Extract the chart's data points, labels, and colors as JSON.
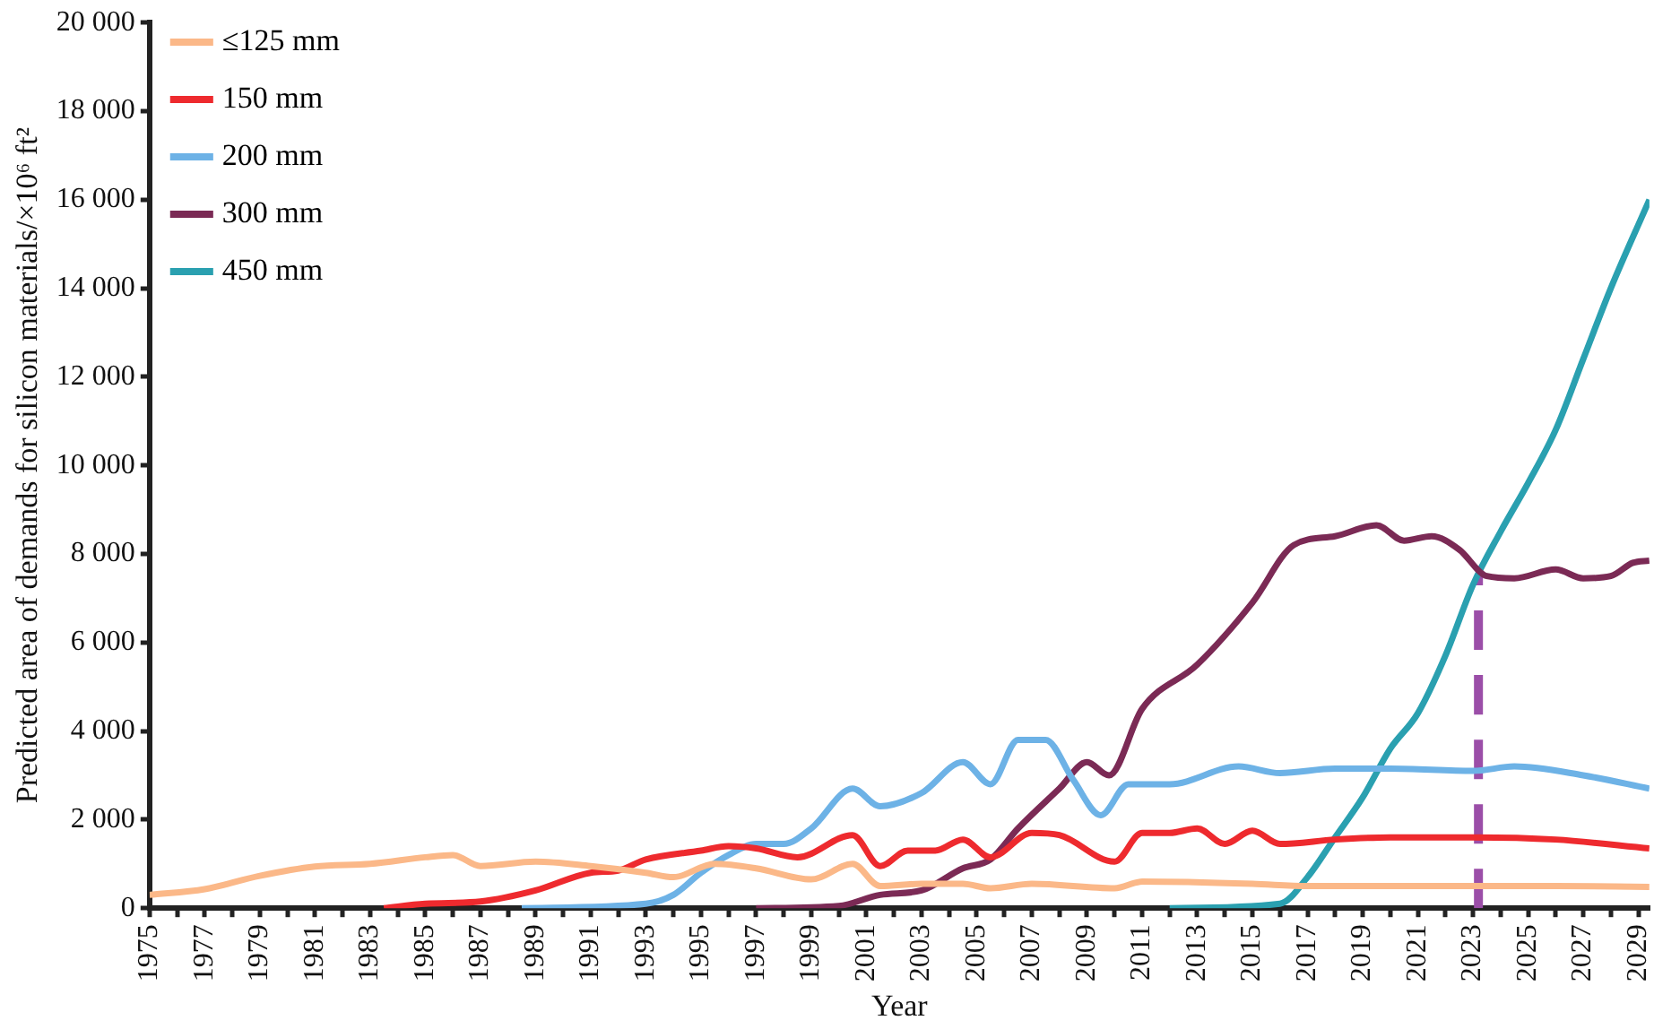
{
  "chart_data": {
    "type": "line",
    "xlabel": "Year",
    "ylabel": "Predicted area of demands for silicon materials/×10⁶ ft²",
    "xlim": [
      1975,
      2029.4
    ],
    "xticks": [
      1975,
      {
        "value": 1976,
        "label": null
      },
      1977,
      {
        "value": 1978,
        "label": null
      },
      1979,
      {
        "value": 1980,
        "label": null
      },
      1981,
      {
        "value": 1982,
        "label": null
      },
      1983,
      {
        "value": 1984,
        "label": null
      },
      1985,
      {
        "value": 1986,
        "label": null
      },
      1987,
      {
        "value": 1988,
        "label": null
      },
      1989,
      {
        "value": 1990,
        "label": null
      },
      1991,
      {
        "value": 1992,
        "label": null
      },
      1993,
      {
        "value": 1994,
        "label": null
      },
      1995,
      {
        "value": 1996,
        "label": null
      },
      1997,
      {
        "value": 1998,
        "label": null
      },
      1999,
      {
        "value": 2000,
        "label": null
      },
      2001,
      {
        "value": 2002,
        "label": null
      },
      2003,
      {
        "value": 2004,
        "label": null
      },
      2005,
      {
        "value": 2006,
        "label": null
      },
      2007,
      {
        "value": 2008,
        "label": null
      },
      2009,
      {
        "value": 2010,
        "label": null
      },
      2011,
      {
        "value": 2012,
        "label": null
      },
      2013,
      {
        "value": 2014,
        "label": null
      },
      2015,
      {
        "value": 2016,
        "label": null
      },
      2017,
      {
        "value": 2018,
        "label": null
      },
      2019,
      {
        "value": 2020,
        "label": null
      },
      2021,
      {
        "value": 2022,
        "label": null
      },
      2023,
      {
        "value": 2024,
        "label": null
      },
      2025,
      {
        "value": 2026,
        "label": null
      },
      2027,
      {
        "value": 2028,
        "label": null
      },
      2029
    ],
    "ylim": [
      0,
      20000
    ],
    "yticks": [
      0,
      {
        "value": 2000,
        "label": "2 000"
      },
      {
        "value": 4000,
        "label": "4 000"
      },
      {
        "value": 6000,
        "label": "6 000"
      },
      {
        "value": 8000,
        "label": "8 000"
      },
      {
        "value": 10000,
        "label": "10 000"
      },
      {
        "value": 12000,
        "label": "12 000"
      },
      {
        "value": 14000,
        "label": "14 000"
      },
      {
        "value": 16000,
        "label": "16 000"
      },
      {
        "value": 18000,
        "label": "18 000"
      },
      {
        "value": 20000,
        "label": "20 000"
      }
    ],
    "grid": false,
    "legend": "top left",
    "marker": "none",
    "line_style": "solid",
    "series": [
      {
        "name": "≤125 mm",
        "color": "#fbb888",
        "x": [
          1975,
          1977,
          1979,
          1981,
          1983,
          1985,
          1986,
          1987,
          1989,
          1991,
          1993,
          1994,
          1995.5,
          1997,
          1999,
          2000.5,
          2001.5,
          2003,
          2004.5,
          2005.5,
          2007,
          2010,
          2011,
          2015,
          2017,
          2020,
          2023,
          2026,
          2029.4
        ],
        "values": [
          300,
          430,
          730,
          940,
          1000,
          1150,
          1200,
          950,
          1050,
          950,
          800,
          700,
          1000,
          900,
          650,
          1000,
          500,
          550,
          550,
          450,
          550,
          450,
          600,
          550,
          500,
          500,
          500,
          500,
          480
        ]
      },
      {
        "name": "150 mm",
        "color": "#ee2a2e",
        "x": [
          1983.5,
          1985,
          1987,
          1989,
          1991,
          1992,
          1993,
          1995,
          1996,
          1997,
          1998.5,
          2000.5,
          2001.5,
          2002.5,
          2003.5,
          2004.5,
          2005.5,
          2007,
          2008,
          2010,
          2011,
          2012,
          2013,
          2014,
          2015,
          2016,
          2018,
          2020,
          2023,
          2026,
          2029.4
        ],
        "values": [
          0,
          100,
          150,
          400,
          800,
          850,
          1100,
          1300,
          1400,
          1350,
          1150,
          1650,
          950,
          1300,
          1300,
          1550,
          1150,
          1700,
          1650,
          1050,
          1700,
          1700,
          1800,
          1450,
          1750,
          1450,
          1550,
          1600,
          1600,
          1550,
          1350
        ]
      },
      {
        "name": "200 mm",
        "color": "#6db2e6",
        "x": [
          1988.5,
          1993,
          1994,
          1995,
          1996,
          1997,
          1998,
          1999,
          2000.5,
          2001.5,
          2003,
          2004.5,
          2005.5,
          2006.5,
          2007.5,
          2008.5,
          2009.5,
          2010.5,
          2012,
          2014.5,
          2016,
          2018,
          2020,
          2023,
          2024.5,
          2027,
          2029.4
        ],
        "values": [
          0,
          100,
          300,
          800,
          1200,
          1450,
          1450,
          1800,
          2700,
          2300,
          2600,
          3300,
          2800,
          3800,
          3800,
          2900,
          2100,
          2800,
          2800,
          3200,
          3050,
          3150,
          3150,
          3100,
          3200,
          3000,
          2700
        ]
      },
      {
        "name": "300 mm",
        "color": "#7b2a55",
        "x": [
          1997,
          2000,
          2001.5,
          2003,
          2004.5,
          2005.5,
          2006.5,
          2008,
          2009,
          2009.8,
          2011,
          2013,
          2015,
          2016.5,
          2018,
          2019.5,
          2020.5,
          2021.5,
          2022.5,
          2023.5,
          2024.5,
          2026,
          2027,
          2028,
          2028.8,
          2029.4
        ],
        "values": [
          0,
          50,
          300,
          400,
          900,
          1100,
          1800,
          2700,
          3300,
          3000,
          4500,
          5500,
          6900,
          8200,
          8400,
          8650,
          8300,
          8400,
          8100,
          7500,
          7450,
          7650,
          7450,
          7500,
          7800,
          7850
        ]
      },
      {
        "name": "450 mm",
        "color": "#2aa0b0",
        "x": [
          2012,
          2016,
          2017,
          2018,
          2019,
          2020,
          2021,
          2022,
          2023,
          2024,
          2025,
          2026,
          2027,
          2028,
          2029.4
        ],
        "values": [
          0,
          100,
          700,
          1600,
          2500,
          3600,
          4400,
          5700,
          7300,
          8500,
          9600,
          10800,
          12400,
          14000,
          16000
        ]
      },
      {
        "type": "line",
        "color": "#9b4ea8",
        "line_style": "dashed",
        "x": [
          2023.2,
          2023.2
        ],
        "values": [
          0,
          7500
        ]
      }
    ]
  }
}
